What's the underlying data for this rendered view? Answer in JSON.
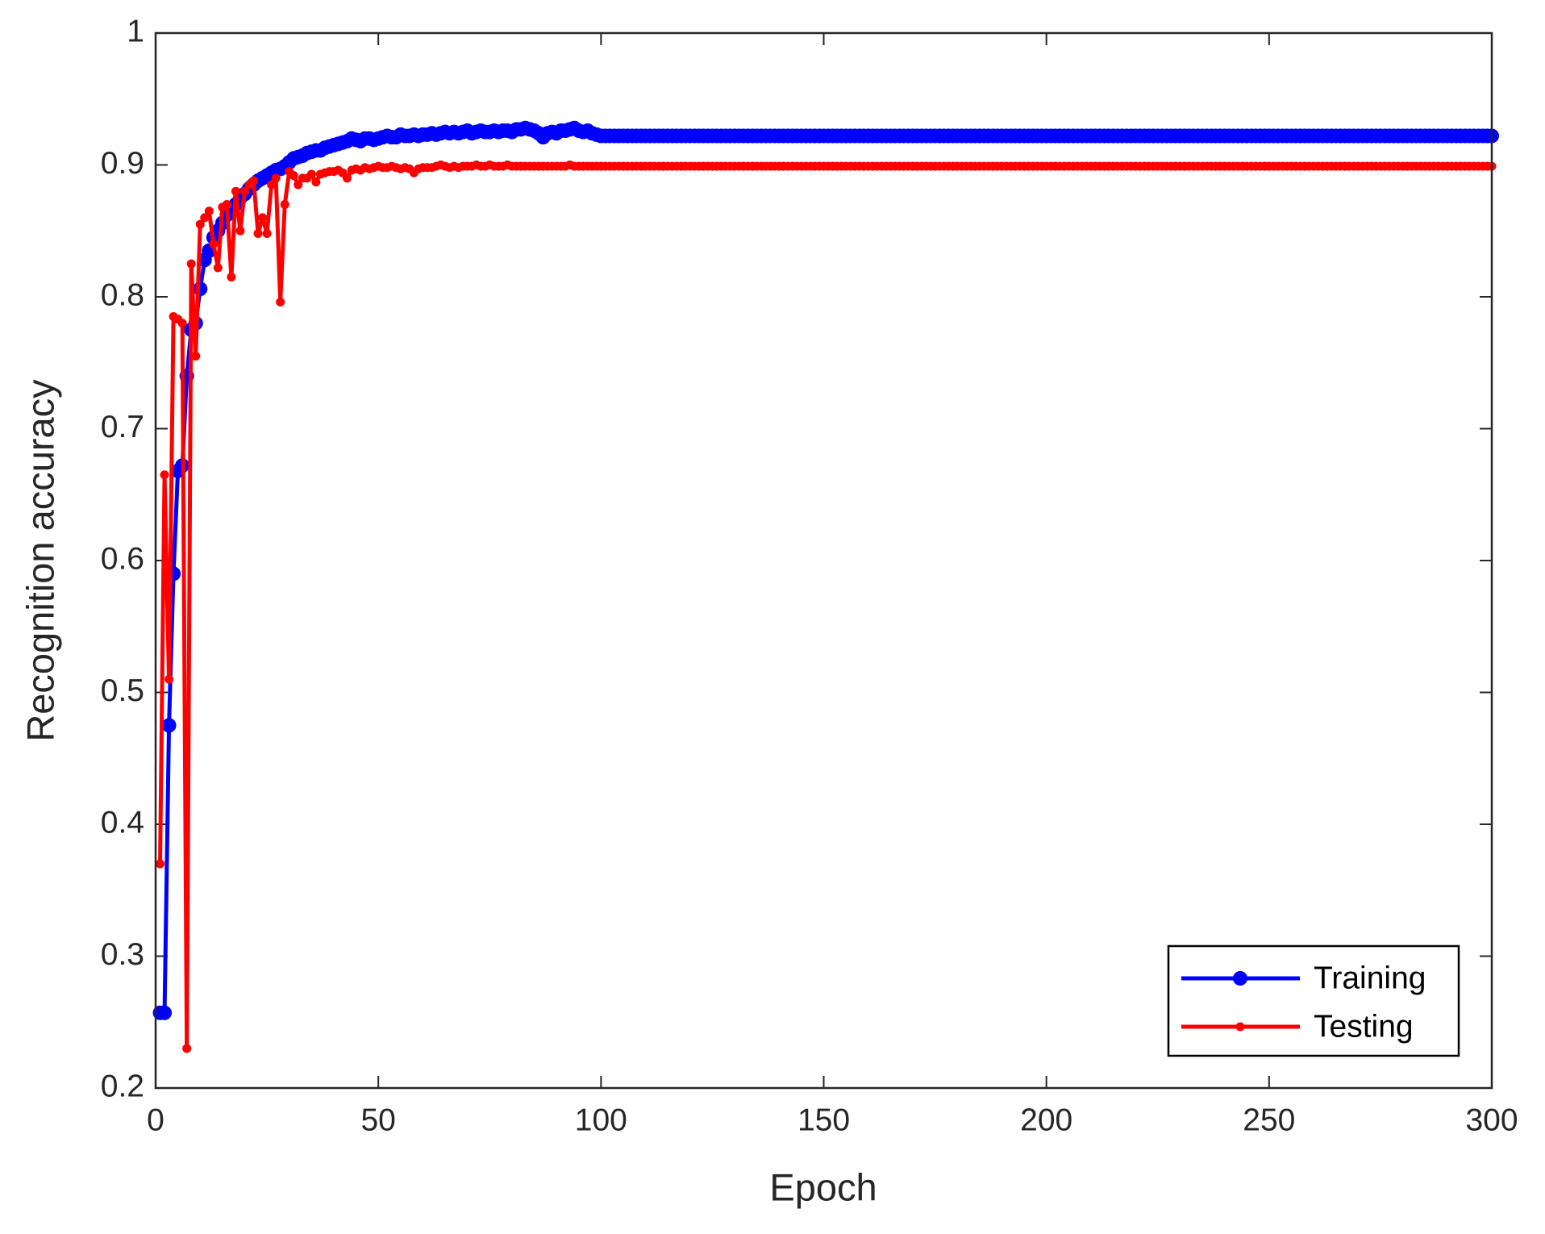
{
  "chart_data": {
    "type": "line",
    "xlabel": "Epoch",
    "ylabel": "Recognition accuracy",
    "x": [
      1,
      2,
      3,
      4,
      5,
      6,
      7,
      8,
      9,
      10,
      11,
      12,
      13,
      14,
      15,
      16,
      17,
      18,
      19,
      20,
      21,
      22,
      23,
      24,
      25,
      26,
      27,
      28,
      29,
      30,
      31,
      32,
      33,
      34,
      35,
      36,
      37,
      38,
      39,
      40,
      41,
      42,
      43,
      44,
      45,
      46,
      47,
      48,
      49,
      50,
      51,
      52,
      53,
      54,
      55,
      56,
      57,
      58,
      59,
      60,
      61,
      62,
      63,
      64,
      65,
      66,
      67,
      68,
      69,
      70,
      71,
      72,
      73,
      74,
      75,
      76,
      77,
      78,
      79,
      80,
      81,
      82,
      83,
      84,
      85,
      86,
      87,
      88,
      89,
      90,
      91,
      92,
      93,
      94,
      95,
      96,
      97,
      98,
      99,
      100,
      101,
      102,
      103,
      104,
      105,
      106,
      107,
      108,
      109,
      110,
      111,
      112,
      113,
      114,
      115,
      116,
      117,
      118,
      119,
      120,
      121,
      122,
      123,
      124,
      125,
      126,
      127,
      128,
      129,
      130,
      131,
      132,
      133,
      134,
      135,
      136,
      137,
      138,
      139,
      140,
      141,
      142,
      143,
      144,
      145,
      146,
      147,
      148,
      149,
      150,
      151,
      152,
      153,
      154,
      155,
      156,
      157,
      158,
      159,
      160,
      161,
      162,
      163,
      164,
      165,
      166,
      167,
      168,
      169,
      170,
      171,
      172,
      173,
      174,
      175,
      176,
      177,
      178,
      179,
      180,
      181,
      182,
      183,
      184,
      185,
      186,
      187,
      188,
      189,
      190,
      191,
      192,
      193,
      194,
      195,
      196,
      197,
      198,
      199,
      200,
      201,
      202,
      203,
      204,
      205,
      206,
      207,
      208,
      209,
      210,
      211,
      212,
      213,
      214,
      215,
      216,
      217,
      218,
      219,
      220,
      221,
      222,
      223,
      224,
      225,
      226,
      227,
      228,
      229,
      230,
      231,
      232,
      233,
      234,
      235,
      236,
      237,
      238,
      239,
      240,
      241,
      242,
      243,
      244,
      245,
      246,
      247,
      248,
      249,
      250,
      251,
      252,
      253,
      254,
      255,
      256,
      257,
      258,
      259,
      260,
      261,
      262,
      263,
      264,
      265,
      266,
      267,
      268,
      269,
      270,
      271,
      272,
      273,
      274,
      275,
      276,
      277,
      278,
      279,
      280,
      281,
      282,
      283,
      284,
      285,
      286,
      287,
      288,
      289,
      290,
      291,
      292,
      293,
      294,
      295,
      296,
      297,
      298,
      299,
      300
    ],
    "series": [
      {
        "name": "Training",
        "color": "#0000ff",
        "marker": "circle",
        "values": [
          0.257,
          0.257,
          0.475,
          0.59,
          0.668,
          0.672,
          0.74,
          0.775,
          0.78,
          0.806,
          0.828,
          0.835,
          0.845,
          0.85,
          0.856,
          0.862,
          0.866,
          0.87,
          0.875,
          0.878,
          0.882,
          0.885,
          0.888,
          0.89,
          0.892,
          0.894,
          0.896,
          0.897,
          0.899,
          0.902,
          0.905,
          0.906,
          0.907,
          0.909,
          0.91,
          0.911,
          0.911,
          0.913,
          0.914,
          0.915,
          0.916,
          0.917,
          0.918,
          0.92,
          0.919,
          0.918,
          0.92,
          0.92,
          0.919,
          0.92,
          0.921,
          0.922,
          0.921,
          0.921,
          0.923,
          0.922,
          0.922,
          0.923,
          0.922,
          0.923,
          0.923,
          0.924,
          0.923,
          0.924,
          0.925,
          0.924,
          0.925,
          0.924,
          0.925,
          0.926,
          0.924,
          0.925,
          0.926,
          0.925,
          0.925,
          0.926,
          0.925,
          0.926,
          0.926,
          0.925,
          0.927,
          0.927,
          0.928,
          0.927,
          0.926,
          0.924,
          0.921,
          0.924,
          0.925,
          0.924,
          0.926,
          0.926,
          0.927,
          0.928,
          0.926,
          0.925,
          0.926,
          0.924,
          0.923,
          0.922,
          0.922,
          0.922,
          0.922,
          0.922,
          0.922,
          0.922,
          0.922,
          0.922,
          0.922,
          0.922,
          0.922,
          0.922,
          0.922,
          0.922,
          0.922,
          0.922,
          0.922,
          0.922,
          0.922,
          0.922,
          0.922,
          0.922,
          0.922,
          0.922,
          0.922,
          0.922,
          0.922,
          0.922,
          0.922,
          0.922,
          0.922,
          0.922,
          0.922,
          0.922,
          0.922,
          0.922,
          0.922,
          0.922,
          0.922,
          0.922,
          0.922,
          0.922,
          0.922,
          0.922,
          0.922,
          0.922,
          0.922,
          0.922,
          0.922,
          0.922,
          0.922,
          0.922,
          0.922,
          0.922,
          0.922,
          0.922,
          0.922,
          0.922,
          0.922,
          0.922,
          0.922,
          0.922,
          0.922,
          0.922,
          0.922,
          0.922,
          0.922,
          0.922,
          0.922,
          0.922,
          0.922,
          0.922,
          0.922,
          0.922,
          0.922,
          0.922,
          0.922,
          0.922,
          0.922,
          0.922,
          0.922,
          0.922,
          0.922,
          0.922,
          0.922,
          0.922,
          0.922,
          0.922,
          0.922,
          0.922,
          0.922,
          0.922,
          0.922,
          0.922,
          0.922,
          0.922,
          0.922,
          0.922,
          0.922,
          0.922,
          0.922,
          0.922,
          0.922,
          0.922,
          0.922,
          0.922,
          0.922,
          0.922,
          0.922,
          0.922,
          0.922,
          0.922,
          0.922,
          0.922,
          0.922,
          0.922,
          0.922,
          0.922,
          0.922,
          0.922,
          0.922,
          0.922,
          0.922,
          0.922,
          0.922,
          0.922,
          0.922,
          0.922,
          0.922,
          0.922,
          0.922,
          0.922,
          0.922,
          0.922,
          0.922,
          0.922,
          0.922,
          0.922,
          0.922,
          0.922,
          0.922,
          0.922,
          0.922,
          0.922,
          0.922,
          0.922,
          0.922,
          0.922,
          0.922,
          0.922,
          0.922,
          0.922,
          0.922,
          0.922,
          0.922,
          0.922,
          0.922,
          0.922,
          0.922,
          0.922,
          0.922,
          0.922,
          0.922,
          0.922,
          0.922,
          0.922,
          0.922,
          0.922,
          0.922,
          0.922,
          0.922,
          0.922,
          0.922,
          0.922,
          0.922,
          0.922,
          0.922,
          0.922,
          0.922,
          0.922,
          0.922,
          0.922,
          0.922,
          0.922,
          0.922,
          0.922,
          0.922,
          0.922,
          0.922,
          0.922,
          0.922,
          0.922,
          0.922,
          0.922,
          0.922,
          0.922,
          0.922,
          0.922,
          0.922,
          0.922
        ]
      },
      {
        "name": "Testing",
        "color": "#ff0000",
        "marker": "dot",
        "values": [
          0.37,
          0.665,
          0.51,
          0.785,
          0.783,
          0.78,
          0.23,
          0.825,
          0.755,
          0.855,
          0.86,
          0.865,
          0.84,
          0.822,
          0.868,
          0.87,
          0.815,
          0.88,
          0.85,
          0.88,
          0.885,
          0.888,
          0.848,
          0.86,
          0.848,
          0.885,
          0.89,
          0.796,
          0.87,
          0.895,
          0.892,
          0.885,
          0.89,
          0.89,
          0.893,
          0.887,
          0.893,
          0.894,
          0.895,
          0.895,
          0.896,
          0.894,
          0.89,
          0.896,
          0.897,
          0.896,
          0.898,
          0.897,
          0.898,
          0.899,
          0.898,
          0.898,
          0.899,
          0.898,
          0.897,
          0.898,
          0.897,
          0.894,
          0.897,
          0.898,
          0.898,
          0.898,
          0.899,
          0.9,
          0.899,
          0.898,
          0.899,
          0.898,
          0.899,
          0.899,
          0.899,
          0.9,
          0.899,
          0.899,
          0.9,
          0.899,
          0.899,
          0.899,
          0.9,
          0.899,
          0.899,
          0.899,
          0.899,
          0.899,
          0.899,
          0.899,
          0.899,
          0.899,
          0.899,
          0.899,
          0.899,
          0.899,
          0.9,
          0.899,
          0.899,
          0.899,
          0.899,
          0.899,
          0.899,
          0.899,
          0.899,
          0.899,
          0.899,
          0.899,
          0.899,
          0.899,
          0.899,
          0.899,
          0.899,
          0.899,
          0.899,
          0.899,
          0.899,
          0.899,
          0.899,
          0.899,
          0.899,
          0.899,
          0.899,
          0.899,
          0.899,
          0.899,
          0.899,
          0.899,
          0.899,
          0.899,
          0.899,
          0.899,
          0.899,
          0.899,
          0.899,
          0.899,
          0.899,
          0.899,
          0.899,
          0.899,
          0.899,
          0.899,
          0.899,
          0.899,
          0.899,
          0.899,
          0.899,
          0.899,
          0.899,
          0.899,
          0.899,
          0.899,
          0.899,
          0.899,
          0.899,
          0.899,
          0.899,
          0.899,
          0.899,
          0.899,
          0.899,
          0.899,
          0.899,
          0.899,
          0.899,
          0.899,
          0.899,
          0.899,
          0.899,
          0.899,
          0.899,
          0.899,
          0.899,
          0.899,
          0.899,
          0.899,
          0.899,
          0.899,
          0.899,
          0.899,
          0.899,
          0.899,
          0.899,
          0.899,
          0.899,
          0.899,
          0.899,
          0.899,
          0.899,
          0.899,
          0.899,
          0.899,
          0.899,
          0.899,
          0.899,
          0.899,
          0.899,
          0.899,
          0.899,
          0.899,
          0.899,
          0.899,
          0.899,
          0.899,
          0.899,
          0.899,
          0.899,
          0.899,
          0.899,
          0.899,
          0.899,
          0.899,
          0.899,
          0.899,
          0.899,
          0.899,
          0.899,
          0.899,
          0.899,
          0.899,
          0.899,
          0.899,
          0.899,
          0.899,
          0.899,
          0.899,
          0.899,
          0.899,
          0.899,
          0.899,
          0.899,
          0.899,
          0.899,
          0.899,
          0.899,
          0.899,
          0.899,
          0.899,
          0.899,
          0.899,
          0.899,
          0.899,
          0.899,
          0.899,
          0.899,
          0.899,
          0.899,
          0.899,
          0.899,
          0.899,
          0.899,
          0.899,
          0.899,
          0.899,
          0.899,
          0.899,
          0.899,
          0.899,
          0.899,
          0.899,
          0.899,
          0.899,
          0.899,
          0.899,
          0.899,
          0.899,
          0.899,
          0.899,
          0.899,
          0.899,
          0.899,
          0.899,
          0.899,
          0.899,
          0.899,
          0.899,
          0.899,
          0.899,
          0.899,
          0.899,
          0.899,
          0.899,
          0.899,
          0.899,
          0.899,
          0.899,
          0.899,
          0.899,
          0.899,
          0.899,
          0.899,
          0.899,
          0.899,
          0.899,
          0.899,
          0.899,
          0.899,
          0.899,
          0.899,
          0.899,
          0.899,
          0.899,
          0.899,
          0.899
        ]
      }
    ],
    "xlim": [
      0,
      300
    ],
    "xticks": [
      0,
      50,
      100,
      150,
      200,
      250,
      300
    ],
    "ylim": [
      0.2,
      1
    ],
    "yticks": [
      0.2,
      0.3,
      0.4,
      0.5,
      0.6,
      0.7,
      0.8,
      0.9,
      1
    ],
    "grid": false,
    "legend": "lower right"
  }
}
